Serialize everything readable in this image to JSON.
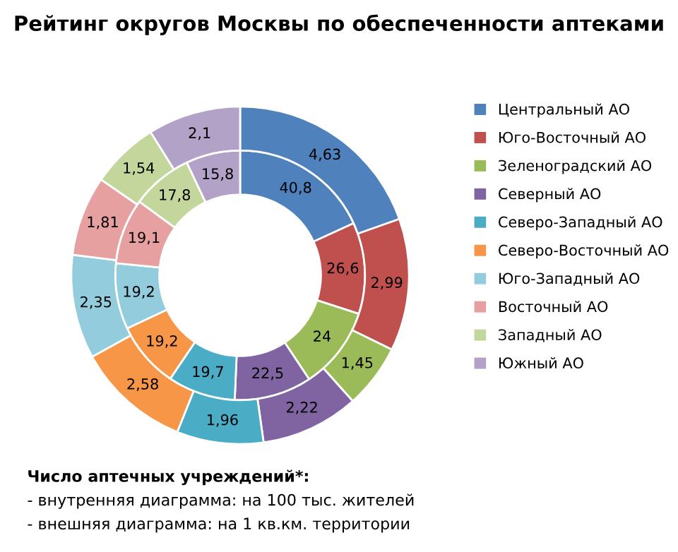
{
  "chart_data": {
    "type": "donut",
    "title": "Рейтинг округов Москвы по обеспеченности аптеками",
    "categories": [
      "Центральный АО",
      "Юго-Восточный АО",
      "Зеленоградский АО",
      "Северный АО",
      "Северо-Западный АО",
      "Северо-Восточный АО",
      "Юго-Западный АО",
      "Восточный АО",
      "Западный АО",
      "Южный АО"
    ],
    "colors": [
      "#4f81bd",
      "#c0504d",
      "#9bbb59",
      "#8064a2",
      "#4bacc6",
      "#f79646",
      "#93cddd",
      "#e6a0a0",
      "#c3d69b",
      "#b3a2c7"
    ],
    "series": [
      {
        "values": [
          40.8,
          26.6,
          24,
          22.5,
          19.7,
          19.2,
          19.2,
          19.1,
          17.8,
          15.8
        ],
        "value_labels": [
          "40,8",
          "26,6",
          "24",
          "22,5",
          "19,7",
          "19,2",
          "19,2",
          "19,1",
          "17,8",
          "15,8"
        ]
      },
      {
        "values": [
          4.63,
          2.99,
          1.45,
          2.22,
          1.96,
          2.58,
          2.35,
          1.81,
          1.54,
          2.1
        ],
        "value_labels": [
          "4,63",
          "2,99",
          "1,45",
          "2,22",
          "1,96",
          "2,58",
          "2,35",
          "1,81",
          "1,54",
          "2,1"
        ]
      }
    ],
    "legend": "right",
    "annotations": [
      "Число аптечных учреждений*:",
      "- внутренняя диаграмма: на 100 тыс. жителей",
      "- внешняя диаграмма: на 1 кв.км. территории"
    ]
  }
}
